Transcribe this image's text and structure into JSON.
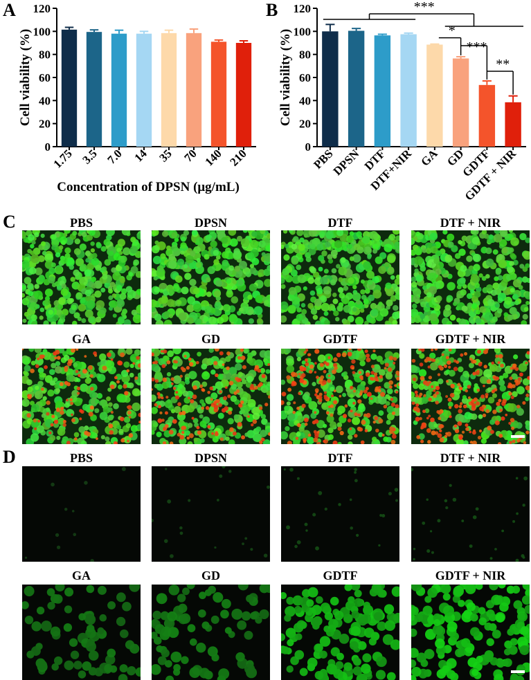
{
  "chart_data": [
    {
      "panel": "A",
      "type": "bar",
      "ylabel": "Cell viability (%)",
      "xlabel": "Concentration of DPSN (μg/mL)",
      "ylim": [
        0,
        120
      ],
      "yticks": [
        0,
        20,
        40,
        60,
        80,
        100,
        120
      ],
      "categories": [
        "1.75",
        "3.5",
        "7.0",
        "14",
        "35",
        "70",
        "140",
        "210"
      ],
      "values": [
        101.5,
        99.5,
        98.0,
        98.0,
        98.5,
        98.5,
        91.0,
        90.0
      ],
      "errors": [
        2.0,
        1.8,
        3.0,
        2.0,
        2.5,
        3.5,
        1.5,
        1.8
      ],
      "colors": [
        "#0f2d4a",
        "#1c6589",
        "#2d9cc9",
        "#a5d7f3",
        "#fdd9aa",
        "#f9a27d",
        "#f4542b",
        "#e0200b"
      ]
    },
    {
      "panel": "B",
      "type": "bar",
      "ylabel": "Cell viability (%)",
      "ylim": [
        0,
        120
      ],
      "yticks": [
        0,
        20,
        40,
        60,
        80,
        100,
        120
      ],
      "categories": [
        "PBS",
        "DPSN",
        "DTF",
        "DTF+NIR",
        "GA",
        "GD",
        "GDTF",
        "GDTF + NIR"
      ],
      "values": [
        100.0,
        100.5,
        96.5,
        97.5,
        88.5,
        76.5,
        53.5,
        38.5
      ],
      "errors": [
        6.0,
        2.0,
        1.0,
        1.0,
        0.5,
        1.5,
        3.5,
        5.5
      ],
      "colors": [
        "#0f2d4a",
        "#1c6589",
        "#2d9cc9",
        "#a5d7f3",
        "#fdd9aa",
        "#f9a27d",
        "#f4542b",
        "#e0200b"
      ],
      "significance": [
        "***",
        "*",
        "***",
        "**"
      ]
    }
  ],
  "panel_c": {
    "letter": "C",
    "labels": [
      "PBS",
      "DPSN",
      "DTF",
      "DTF + NIR",
      "GA",
      "GD",
      "GDTF",
      "GDTF + NIR"
    ]
  },
  "panel_d": {
    "letter": "D",
    "labels": [
      "PBS",
      "DPSN",
      "DTF",
      "DTF + NIR",
      "GA",
      "GD",
      "GDTF",
      "GDTF + NIR"
    ]
  },
  "colors": {
    "live_green": "#1fcf1f",
    "dead_red": "#e0301a",
    "background_dark": "#0a160a"
  }
}
